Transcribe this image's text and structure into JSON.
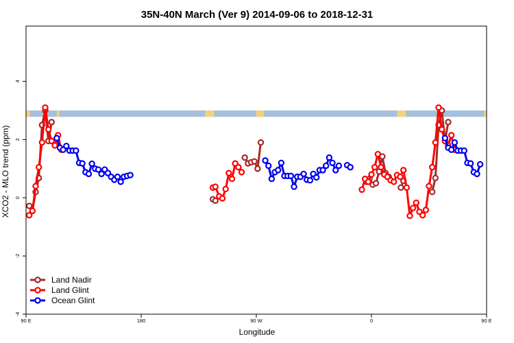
{
  "chart_data": {
    "type": "line",
    "title": "35N-40N March (Ver 9)   2014-09-06 to 2018-12-31",
    "xlabel": "Longitude",
    "ylabel": "XCO2 - MLO trend (ppm)",
    "xlim": [
      90,
      450
    ],
    "ylim": [
      -4.0,
      5.9
    ],
    "x_ticks": [
      {
        "value": 90,
        "label": "90 E"
      },
      {
        "value": 180,
        "label": "180"
      },
      {
        "value": 270,
        "label": "90 W"
      },
      {
        "value": 360,
        "label": "0"
      },
      {
        "value": 450,
        "label": "90 E"
      }
    ],
    "y_ticks": [
      {
        "value": -4,
        "label": "-4"
      },
      {
        "value": -2,
        "label": "-2"
      },
      {
        "value": 0,
        "label": "0"
      },
      {
        "value": 2,
        "label": "2"
      },
      {
        "value": 4,
        "label": "4"
      }
    ],
    "land_band": {
      "y_range": [
        2.78,
        3.0
      ],
      "land_color": "#f2d37a",
      "ocean_color": "#a6bfdc",
      "land_segments": [
        [
          90,
          93
        ],
        [
          114,
          116
        ],
        [
          230,
          237
        ],
        [
          270,
          276
        ],
        [
          380,
          387
        ],
        [
          448,
          450
        ]
      ]
    },
    "legend": {
      "position": "bottom-left"
    },
    "series": [
      {
        "name": "Land Nadir",
        "color": "#a52a2a",
        "segments": [
          [
            [
              92.5,
              -0.28
            ],
            [
              95,
              -0.45
            ],
            [
              97.5,
              0.2
            ],
            [
              100,
              0.68
            ],
            [
              102.5,
              2.5
            ],
            [
              105,
              3.0
            ],
            [
              107.5,
              1.95
            ],
            [
              110,
              2.6
            ]
          ],
          [
            [
              236,
              -0.05
            ],
            [
              238,
              -0.1
            ]
          ],
          [
            [
              261,
              1.38
            ],
            [
              263.5,
              1.18
            ],
            [
              266,
              1.22
            ],
            [
              268.5,
              1.25
            ],
            [
              271,
              1.0
            ],
            [
              273.5,
              1.9
            ]
          ],
          [
            [
              356,
              0.55
            ],
            [
              358.5,
              0.65
            ],
            [
              361,
              0.45
            ],
            [
              363.5,
              0.5
            ],
            [
              366,
              0.9
            ],
            [
              368.5,
              1.42
            ],
            [
              371,
              0.85
            ],
            [
              373.5,
              0.72
            ]
          ],
          [
            [
              383,
              0.35
            ],
            [
              385,
              0.58
            ]
          ],
          [
            [
              407.5,
              0.2
            ],
            [
              410,
              0.68
            ],
            [
              412.5,
              2.5
            ],
            [
              415,
              3.0
            ],
            [
              417.5,
              1.95
            ],
            [
              420,
              2.6
            ]
          ]
        ]
      },
      {
        "name": "Land Glint",
        "color": "#ff0000",
        "segments": [
          [
            [
              92.5,
              -0.6
            ],
            [
              95,
              -0.45
            ],
            [
              97.5,
              0.4
            ],
            [
              100,
              1.05
            ],
            [
              102.5,
              1.9
            ],
            [
              105,
              3.1
            ],
            [
              107.5,
              2.35
            ],
            [
              110,
              1.95
            ],
            [
              112.5,
              1.8
            ],
            [
              115,
              2.15
            ],
            [
              117.5,
              1.65
            ]
          ],
          [
            [
              236,
              0.35
            ],
            [
              238,
              0.38
            ],
            [
              241,
              0.05
            ],
            [
              243.5,
              -0.02
            ],
            [
              246,
              0.3
            ],
            [
              248.5,
              0.85
            ],
            [
              251,
              0.65
            ],
            [
              253.5,
              1.18
            ],
            [
              256,
              1.05
            ],
            [
              258.5,
              0.88
            ]
          ],
          [
            [
              352.5,
              0.28
            ],
            [
              355,
              0.65
            ],
            [
              357.5,
              0.55
            ],
            [
              360,
              0.8
            ],
            [
              362.5,
              1.05
            ],
            [
              365,
              1.5
            ],
            [
              367.5,
              1.05
            ],
            [
              370,
              0.8
            ],
            [
              372.5,
              0.72
            ],
            [
              375,
              0.6
            ],
            [
              377.5,
              0.55
            ],
            [
              380,
              0.78
            ],
            [
              382.5,
              0.72
            ],
            [
              385,
              0.95
            ],
            [
              387.5,
              0.35
            ],
            [
              390,
              -0.62
            ],
            [
              392.5,
              -0.35
            ],
            [
              395,
              -0.17
            ],
            [
              397.5,
              -0.48
            ],
            [
              400,
              -0.6
            ],
            [
              402.5,
              -0.42
            ],
            [
              405,
              0.4
            ],
            [
              407.5,
              1.05
            ],
            [
              410,
              1.9
            ],
            [
              412.5,
              3.1
            ],
            [
              415,
              2.35
            ],
            [
              417.5,
              1.95
            ],
            [
              420,
              1.8
            ],
            [
              422.5,
              2.15
            ],
            [
              425,
              1.65
            ]
          ]
        ]
      },
      {
        "name": "Ocean Glint",
        "color": "#0000ee",
        "segments": [
          [
            [
              114,
              2.05
            ],
            [
              116.5,
              1.72
            ],
            [
              119,
              1.65
            ],
            [
              121.5,
              1.78
            ],
            [
              124,
              1.62
            ],
            [
              126.5,
              1.62
            ],
            [
              129,
              1.62
            ],
            [
              131.5,
              1.2
            ],
            [
              134,
              1.18
            ],
            [
              136.5,
              0.88
            ],
            [
              139,
              0.82
            ],
            [
              141.5,
              1.17
            ],
            [
              144,
              1.0
            ],
            [
              146.5,
              0.97
            ],
            [
              149,
              0.82
            ],
            [
              151.5,
              0.97
            ],
            [
              154,
              0.85
            ],
            [
              156.5,
              0.72
            ],
            [
              159,
              0.62
            ],
            [
              161.5,
              0.72
            ],
            [
              164,
              0.55
            ],
            [
              166.5,
              0.72
            ],
            [
              169,
              0.75
            ],
            [
              171.5,
              0.78
            ]
          ],
          [
            [
              277,
              1.28
            ],
            [
              279.5,
              1.1
            ],
            [
              282,
              0.65
            ],
            [
              284.5,
              0.88
            ],
            [
              287,
              0.95
            ],
            [
              289.5,
              1.2
            ],
            [
              292,
              0.75
            ],
            [
              294.5,
              0.75
            ],
            [
              297,
              0.75
            ],
            [
              299.5,
              0.38
            ],
            [
              302,
              0.72
            ],
            [
              304.5,
              0.72
            ],
            [
              307,
              0.82
            ],
            [
              309.5,
              0.62
            ],
            [
              312,
              0.6
            ],
            [
              314.5,
              0.82
            ],
            [
              317,
              0.7
            ],
            [
              319.5,
              0.95
            ],
            [
              322,
              0.95
            ],
            [
              324.5,
              1.1
            ],
            [
              327,
              1.38
            ],
            [
              329.5,
              1.2
            ],
            [
              332,
              0.95
            ],
            [
              334.5,
              1.1
            ]
          ],
          [
            [
              341,
              1.12
            ],
            [
              343.5,
              1.05
            ]
          ],
          [
            [
              417.5,
              2.05
            ],
            [
              420,
              1.72
            ],
            [
              422.5,
              1.65
            ],
            [
              425,
              1.9
            ],
            [
              427.5,
              1.62
            ],
            [
              430,
              1.62
            ],
            [
              432.5,
              1.62
            ],
            [
              435,
              1.2
            ],
            [
              437.5,
              1.18
            ],
            [
              440,
              0.88
            ],
            [
              442.5,
              0.82
            ],
            [
              445,
              1.15
            ]
          ]
        ]
      }
    ]
  }
}
